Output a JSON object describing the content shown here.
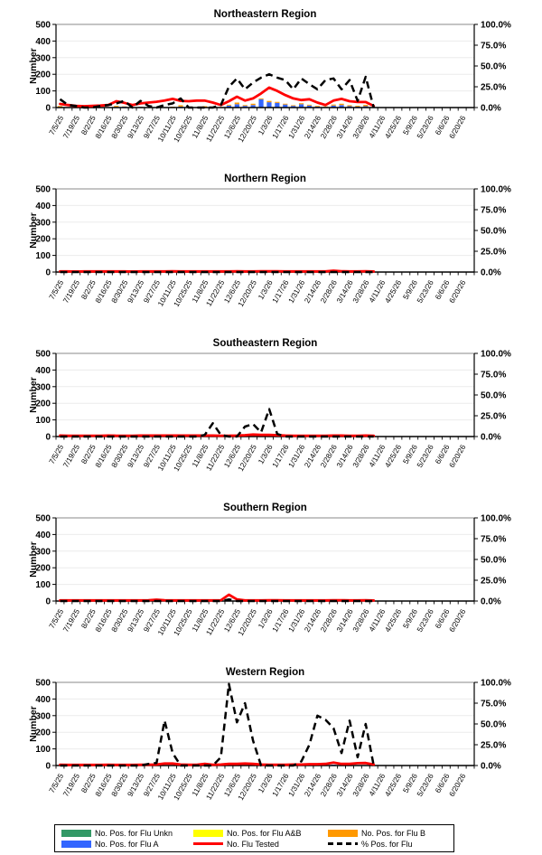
{
  "axis": {
    "ylabel": "Number",
    "left_ticks": [
      "0",
      "100",
      "200",
      "300",
      "400",
      "500"
    ],
    "right_ticks": [
      "0.0%",
      "25.0%",
      "50.0%",
      "75.0%",
      "100.0%"
    ],
    "left_range": [
      0,
      500
    ],
    "right_range_pct": [
      0,
      100
    ],
    "x_labels": [
      "7/5/25",
      "7/19/25",
      "8/2/25",
      "8/16/25",
      "8/30/25",
      "9/13/25",
      "9/27/25",
      "10/11/25",
      "10/25/25",
      "11/8/25",
      "11/22/25",
      "12/6/25",
      "12/20/25",
      "1/3/26",
      "1/17/26",
      "1/31/26",
      "2/14/26",
      "2/28/26",
      "3/14/26",
      "3/28/26",
      "4/11/26",
      "4/25/26",
      "5/9/26",
      "5/23/26",
      "6/6/26",
      "6/20/26"
    ],
    "weeks_total": 52,
    "grid": "horizontal-light"
  },
  "legend": {
    "items": [
      {
        "label": "No. Pos. for Flu Unkn",
        "color": "#339966",
        "type": "box"
      },
      {
        "label": "No. Pos. for Flu A&B",
        "color": "#FFFF00",
        "type": "box"
      },
      {
        "label": "No. Pos. for Flu B",
        "color": "#FF9900",
        "type": "box"
      },
      {
        "label": "No. Pos. for Flu A",
        "color": "#3366FF",
        "type": "box"
      },
      {
        "label": "No. Flu Tested",
        "color": "#FF0000",
        "type": "line"
      },
      {
        "label": "% Pos. for Flu",
        "color": "#000000",
        "type": "dashed"
      }
    ]
  },
  "colors": {
    "flu_unkn": "#339966",
    "flu_ab": "#FFFF00",
    "flu_b": "#FF9900",
    "flu_a": "#3366FF",
    "tested": "#FF0000",
    "pct_pos": "#000000",
    "gridline": "#ececec",
    "plot_top_line": "#8a8a8a"
  },
  "chart_data": [
    {
      "type": "bar+line combo",
      "title": "Northeastern Region",
      "series": {
        "flu_a": [
          3,
          0,
          0,
          0,
          0,
          0,
          2,
          4,
          5,
          0,
          4,
          1,
          0,
          1,
          3,
          6,
          0,
          0,
          0,
          0,
          2,
          12,
          20,
          10,
          15,
          50,
          32,
          28,
          18,
          10,
          20,
          12,
          6,
          4,
          12,
          15,
          8,
          6,
          8,
          1
        ],
        "flu_b": [
          6,
          0,
          0,
          0,
          0,
          0,
          0,
          6,
          2,
          0,
          1,
          0,
          0,
          1,
          2,
          8,
          0,
          2,
          8,
          0,
          1,
          5,
          10,
          5,
          8,
          5,
          8,
          6,
          5,
          4,
          6,
          5,
          4,
          3,
          6,
          8,
          6,
          5,
          8,
          1
        ],
        "tested": [
          22,
          15,
          10,
          8,
          10,
          12,
          15,
          38,
          28,
          15,
          25,
          30,
          35,
          42,
          52,
          40,
          38,
          42,
          42,
          30,
          15,
          38,
          65,
          42,
          55,
          85,
          120,
          100,
          75,
          55,
          45,
          50,
          30,
          15,
          42,
          52,
          38,
          33,
          33,
          10
        ],
        "pct_pos": [
          10,
          3,
          2,
          0,
          0,
          2,
          3,
          5,
          8,
          0,
          8,
          2,
          0,
          3,
          5,
          11,
          0,
          0,
          0,
          0,
          3,
          25,
          35,
          22,
          30,
          36,
          40,
          36,
          33,
          22,
          35,
          28,
          22,
          33,
          35,
          22,
          33,
          8,
          37,
          0
        ]
      }
    },
    {
      "type": "bar+line combo",
      "title": "Northern Region",
      "series": {
        "flu_a": [
          0,
          0,
          0,
          0,
          0,
          0,
          0,
          0,
          0,
          0,
          0,
          0,
          0,
          0,
          0,
          0,
          0,
          0,
          0,
          0,
          0,
          0,
          0,
          0,
          0,
          0,
          0,
          0,
          0,
          0,
          0,
          0,
          0,
          0,
          0,
          0,
          0,
          0,
          0,
          0
        ],
        "flu_b": [
          0,
          0,
          0,
          0,
          0,
          0,
          0,
          0,
          0,
          0,
          0,
          0,
          0,
          0,
          0,
          0,
          0,
          0,
          0,
          0,
          0,
          0,
          0,
          0,
          0,
          0,
          0,
          0,
          0,
          0,
          0,
          0,
          0,
          0,
          0,
          0,
          0,
          0,
          0,
          0
        ],
        "tested": [
          4,
          4,
          3,
          4,
          4,
          4,
          4,
          4,
          4,
          3,
          4,
          4,
          4,
          4,
          5,
          4,
          4,
          4,
          4,
          4,
          4,
          4,
          5,
          4,
          4,
          5,
          5,
          5,
          4,
          4,
          4,
          4,
          4,
          4,
          8,
          5,
          4,
          4,
          5,
          3
        ],
        "pct_pos": [
          0,
          0,
          0,
          0,
          0,
          0,
          0,
          0,
          0,
          0,
          0,
          0,
          0,
          0,
          0,
          0,
          0,
          0,
          0,
          0,
          0,
          0,
          0,
          0,
          0,
          0,
          0,
          0,
          0,
          0,
          0,
          0,
          0,
          0,
          0,
          0,
          0,
          0,
          0,
          0
        ]
      }
    },
    {
      "type": "bar+line combo",
      "title": "Southeastern Region",
      "series": {
        "flu_a": [
          0,
          0,
          0,
          0,
          0,
          0,
          0,
          0,
          0,
          0,
          0,
          0,
          0,
          0,
          0,
          0,
          0,
          0,
          0,
          1,
          0,
          0,
          0,
          1,
          2,
          0,
          3,
          0,
          0,
          0,
          0,
          0,
          0,
          0,
          0,
          0,
          0,
          0,
          0,
          0
        ],
        "flu_b": [
          0,
          0,
          0,
          0,
          0,
          0,
          0,
          0,
          0,
          0,
          0,
          0,
          0,
          0,
          0,
          0,
          0,
          0,
          0,
          0,
          0,
          0,
          0,
          0,
          0,
          0,
          0,
          0,
          0,
          0,
          0,
          0,
          0,
          0,
          0,
          0,
          0,
          0,
          0,
          0
        ],
        "tested": [
          6,
          5,
          5,
          5,
          5,
          5,
          6,
          5,
          5,
          5,
          6,
          6,
          6,
          6,
          6,
          6,
          6,
          6,
          6,
          6,
          5,
          5,
          6,
          8,
          12,
          10,
          10,
          8,
          6,
          5,
          5,
          5,
          5,
          5,
          6,
          6,
          5,
          5,
          6,
          5
        ],
        "pct_pos": [
          0,
          0,
          0,
          0,
          0,
          0,
          0,
          0,
          0,
          0,
          0,
          0,
          0,
          0,
          0,
          0,
          0,
          0,
          2,
          16,
          2,
          0,
          0,
          12,
          15,
          5,
          33,
          3,
          0,
          0,
          0,
          0,
          0,
          0,
          0,
          0,
          0,
          0,
          0,
          0
        ]
      }
    },
    {
      "type": "bar+line combo",
      "title": "Southern Region",
      "series": {
        "flu_a": [
          0,
          0,
          0,
          0,
          0,
          0,
          0,
          0,
          0,
          0,
          0,
          0,
          0,
          0,
          0,
          0,
          0,
          0,
          0,
          0,
          0,
          4,
          0,
          0,
          0,
          0,
          0,
          0,
          0,
          0,
          0,
          0,
          0,
          0,
          0,
          0,
          0,
          0,
          0,
          0
        ],
        "flu_b": [
          0,
          0,
          0,
          0,
          0,
          0,
          0,
          0,
          0,
          0,
          0,
          0,
          0,
          0,
          0,
          0,
          0,
          0,
          0,
          0,
          0,
          0,
          0,
          0,
          0,
          0,
          0,
          0,
          0,
          0,
          0,
          0,
          0,
          0,
          0,
          0,
          0,
          0,
          0,
          0
        ],
        "tested": [
          4,
          4,
          4,
          4,
          4,
          4,
          4,
          4,
          4,
          4,
          4,
          5,
          8,
          5,
          4,
          4,
          4,
          4,
          4,
          4,
          5,
          38,
          10,
          4,
          4,
          4,
          5,
          5,
          4,
          4,
          4,
          4,
          4,
          4,
          5,
          5,
          4,
          4,
          5,
          3
        ],
        "pct_pos": [
          0,
          0,
          0,
          0,
          0,
          0,
          0,
          0,
          0,
          0,
          0,
          0,
          0,
          0,
          0,
          0,
          0,
          0,
          0,
          0,
          0,
          2,
          0,
          0,
          0,
          0,
          0,
          0,
          0,
          0,
          0,
          0,
          0,
          0,
          0,
          0,
          0,
          0,
          0,
          0
        ]
      }
    },
    {
      "type": "bar+line combo",
      "title": "Western Region",
      "series": {
        "flu_a": [
          0,
          0,
          0,
          0,
          0,
          0,
          0,
          0,
          0,
          0,
          0,
          0,
          0,
          1,
          1,
          0,
          0,
          0,
          0,
          0,
          0,
          2,
          1,
          1,
          0,
          0,
          0,
          0,
          0,
          0,
          0,
          1,
          2,
          2,
          5,
          2,
          3,
          2,
          3,
          0
        ],
        "flu_b": [
          0,
          0,
          0,
          0,
          0,
          0,
          0,
          0,
          0,
          0,
          0,
          0,
          0,
          0,
          0,
          0,
          0,
          0,
          0,
          0,
          0,
          0,
          0,
          0,
          0,
          0,
          0,
          0,
          0,
          0,
          0,
          0,
          0,
          0,
          0,
          0,
          0,
          0,
          0,
          0
        ],
        "tested": [
          5,
          4,
          4,
          4,
          4,
          4,
          5,
          4,
          4,
          4,
          5,
          5,
          6,
          12,
          12,
          6,
          5,
          5,
          10,
          5,
          6,
          10,
          10,
          12,
          10,
          6,
          5,
          5,
          5,
          6,
          6,
          8,
          8,
          10,
          18,
          10,
          10,
          14,
          15,
          6
        ],
        "pct_pos": [
          0,
          0,
          0,
          0,
          0,
          0,
          0,
          0,
          0,
          0,
          0,
          2,
          3,
          54,
          15,
          0,
          0,
          0,
          0,
          0,
          10,
          98,
          52,
          75,
          30,
          0,
          0,
          0,
          0,
          0,
          5,
          25,
          60,
          55,
          45,
          15,
          54,
          10,
          50,
          0
        ]
      }
    }
  ]
}
